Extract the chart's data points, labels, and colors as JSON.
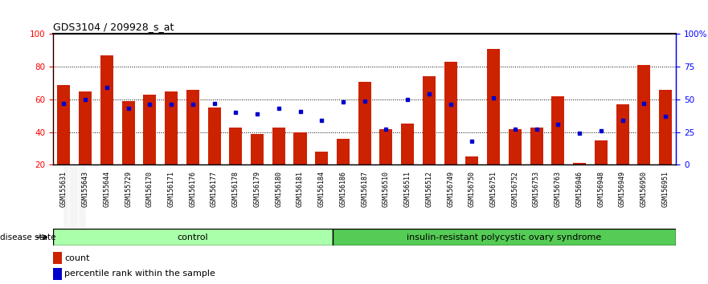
{
  "title": "GDS3104 / 209928_s_at",
  "samples": [
    "GSM155631",
    "GSM155643",
    "GSM155644",
    "GSM155729",
    "GSM156170",
    "GSM156171",
    "GSM156176",
    "GSM156177",
    "GSM156178",
    "GSM156179",
    "GSM156180",
    "GSM156181",
    "GSM156184",
    "GSM156186",
    "GSM156187",
    "GSM156510",
    "GSM156511",
    "GSM156512",
    "GSM156749",
    "GSM156750",
    "GSM156751",
    "GSM156752",
    "GSM156753",
    "GSM156763",
    "GSM156946",
    "GSM156948",
    "GSM156949",
    "GSM156950",
    "GSM156951"
  ],
  "count_values": [
    69,
    65,
    87,
    59,
    63,
    65,
    66,
    55,
    43,
    39,
    43,
    40,
    28,
    36,
    71,
    42,
    45,
    74,
    83,
    25,
    91,
    42,
    43,
    62,
    21,
    35,
    57,
    81,
    66
  ],
  "percentile_values": [
    47,
    50,
    59,
    43,
    46,
    46,
    46,
    47,
    40,
    39,
    43,
    41,
    34,
    48,
    49,
    27,
    50,
    54,
    46,
    18,
    51,
    27,
    27,
    31,
    24,
    26,
    34,
    47,
    37
  ],
  "control_count": 13,
  "disease_count": 16,
  "bar_color": "#cc2200",
  "percentile_color": "#0000cc",
  "control_label": "control",
  "disease_label": "insulin-resistant polycystic ovary syndrome",
  "disease_state_label": "disease state",
  "legend_count": "count",
  "legend_percentile": "percentile rank within the sample",
  "ylim_left": [
    20,
    100
  ],
  "ylim_right": [
    0,
    100
  ],
  "yticks_left": [
    20,
    40,
    60,
    80,
    100
  ],
  "yticks_right": [
    0,
    25,
    50,
    75,
    100
  ],
  "ytick_labels_right": [
    "0",
    "25",
    "50",
    "75",
    "100%"
  ],
  "control_bg": "#aaffaa",
  "disease_bg": "#55cc55",
  "tick_label_bg": "#cccccc"
}
